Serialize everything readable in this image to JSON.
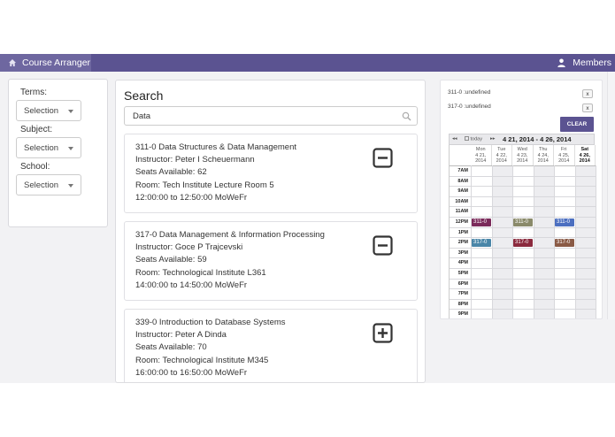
{
  "navbar": {
    "brand": "Course Arranger",
    "members": "Members"
  },
  "filters": {
    "terms_label": "Terms:",
    "subject_label": "Subject:",
    "school_label": "School:",
    "terms_value": "Selection",
    "subject_value": "Selection",
    "school_value": "Selection"
  },
  "search": {
    "title": "Search",
    "query": "Data",
    "results": [
      {
        "title": "311-0 Data Structures & Data Management",
        "instructor": "Instructor: Peter I Scheuermann",
        "seats": "Seats Available: 62",
        "room": "Room: Tech Institute Lecture Room 5",
        "time": "12:00:00 to 12:50:00 MoWeFr",
        "action": "remove"
      },
      {
        "title": "317-0 Data Management & Information Processing",
        "instructor": "Instructor: Goce P Trajcevski",
        "seats": "Seats Available: 59",
        "room": "Room: Technological Institute L361",
        "time": "14:00:00 to 14:50:00 MoWeFr",
        "action": "remove"
      },
      {
        "title": "339-0 Introduction to Database Systems",
        "instructor": "Instructor: Peter A Dinda",
        "seats": "Seats Available: 70",
        "room": "Room: Technological Institute M345",
        "time": "16:00:00 to 16:50:00 MoWeFr",
        "action": "add"
      }
    ]
  },
  "calendar": {
    "selected": [
      {
        "label": "311-0 :undefined",
        "remove": "x"
      },
      {
        "label": "317-0 :undefined",
        "remove": "x"
      }
    ],
    "clear_label": "CLEAR",
    "toolbar": {
      "prev": "◂◂",
      "today": "today",
      "next": "▸▸",
      "range": "4 21, 2014 - 4 26, 2014"
    },
    "days": [
      {
        "name": "Mon",
        "date": "4 21,",
        "year": "2014"
      },
      {
        "name": "Tue",
        "date": "4 22,",
        "year": "2014"
      },
      {
        "name": "Wed",
        "date": "4 23,",
        "year": "2014"
      },
      {
        "name": "Thu",
        "date": "4 24,",
        "year": "2014"
      },
      {
        "name": "Fri",
        "date": "4 25,",
        "year": "2014"
      },
      {
        "name": "Sat",
        "date": "4 26,",
        "year": "2014"
      }
    ],
    "hours": [
      "7AM",
      "8AM",
      "9AM",
      "10AM",
      "11AM",
      "12PM",
      "1PM",
      "2PM",
      "3PM",
      "4PM",
      "5PM",
      "6PM",
      "7PM",
      "8PM",
      "9PM"
    ],
    "events": [
      {
        "label": "311-0",
        "day": 0,
        "hour": 5,
        "color": "#7a2a5a"
      },
      {
        "label": "311-0",
        "day": 2,
        "hour": 5,
        "color": "#8a8a6a"
      },
      {
        "label": "311-0",
        "day": 4,
        "hour": 5,
        "color": "#4c6fc0"
      },
      {
        "label": "317-0",
        "day": 0,
        "hour": 7,
        "color": "#4a86a8"
      },
      {
        "label": "317-0",
        "day": 2,
        "hour": 7,
        "color": "#8b2a3e"
      },
      {
        "label": "317-0",
        "day": 4,
        "hour": 7,
        "color": "#8a5a45"
      }
    ]
  }
}
